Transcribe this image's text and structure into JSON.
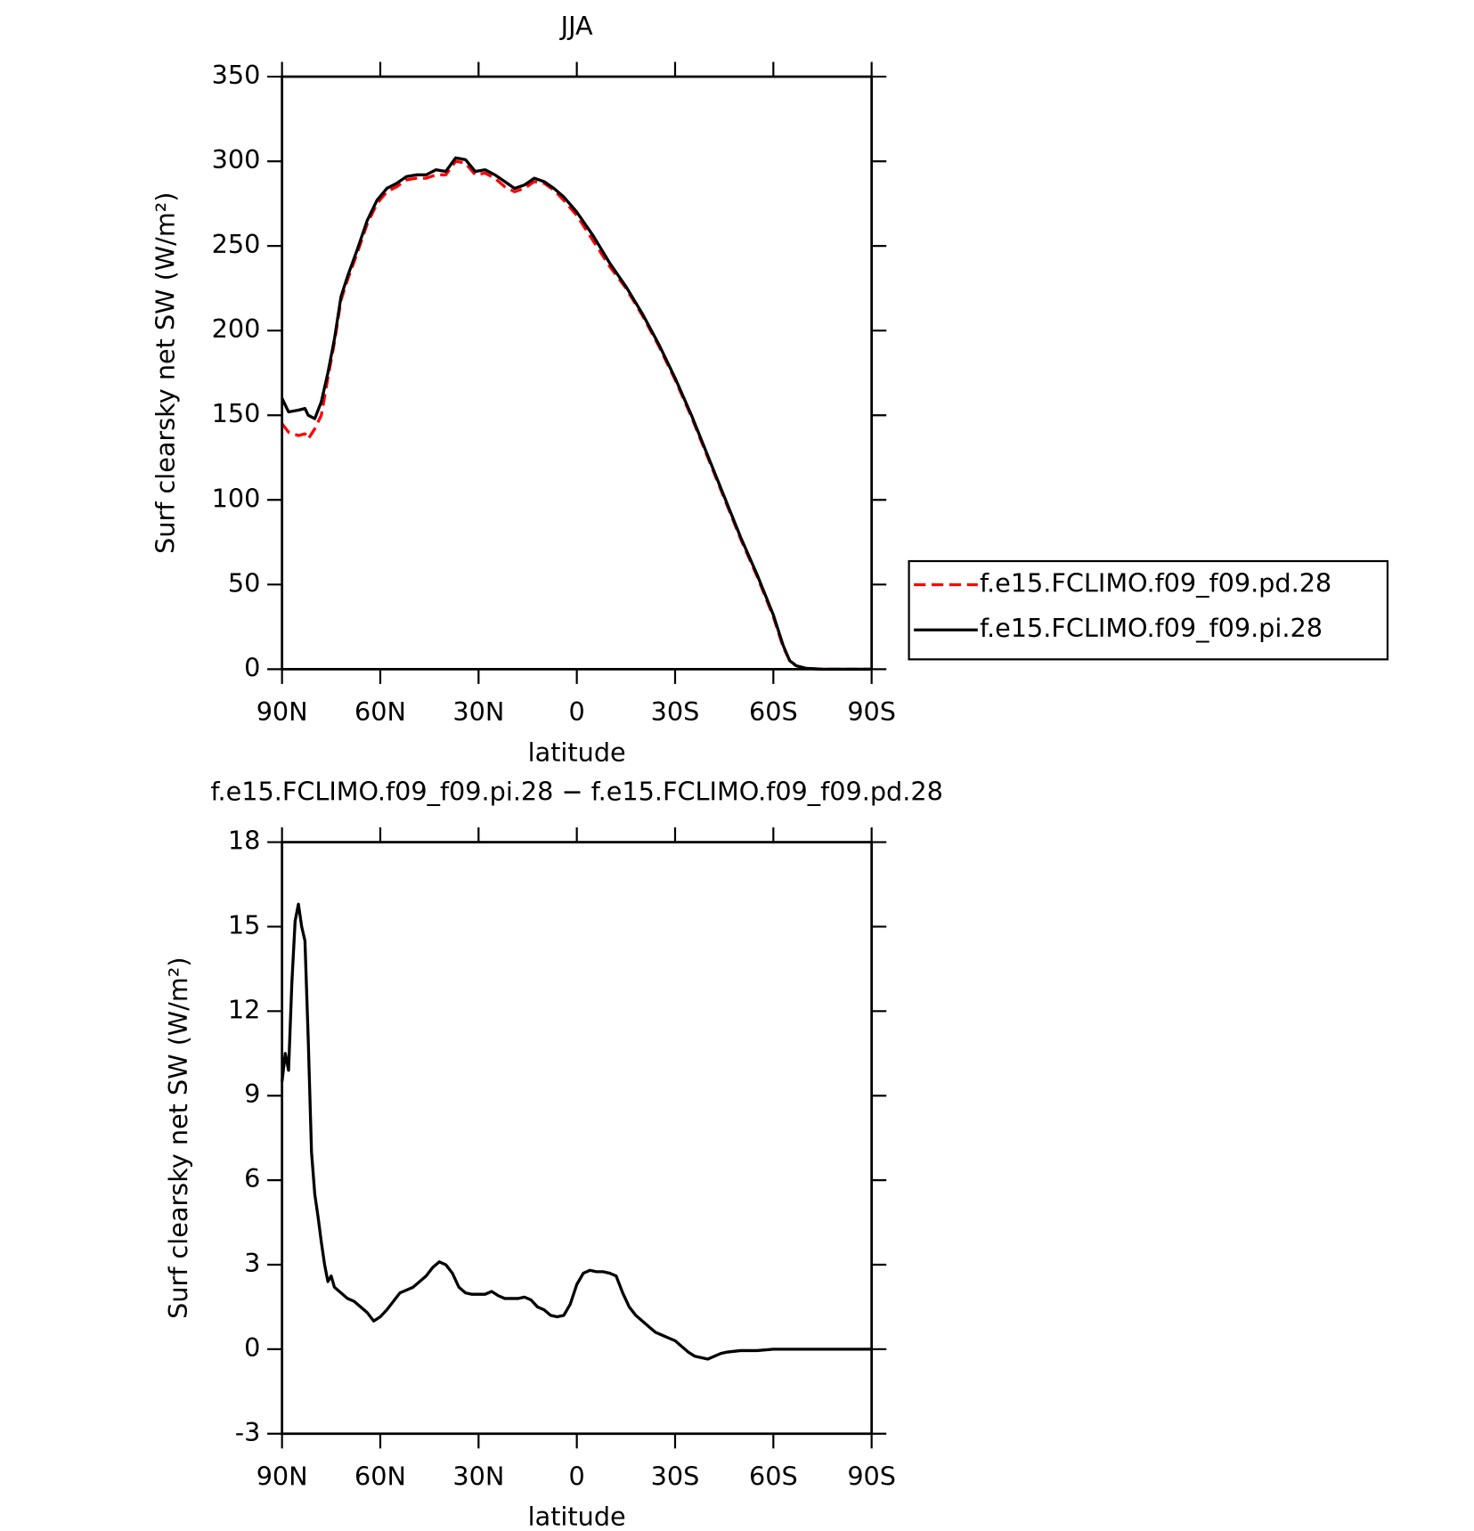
{
  "chart_data": [
    {
      "type": "line",
      "title": "JJA",
      "xlabel": "latitude",
      "ylabel": "Surf clearsky net SW (W/m²)",
      "x": [
        90,
        88,
        85,
        83,
        82,
        80,
        78,
        76,
        74,
        72,
        70,
        67,
        64,
        61,
        58,
        55,
        52,
        49,
        46,
        43,
        40,
        37,
        34,
        31,
        28,
        25,
        22,
        19,
        16,
        13,
        10,
        7,
        4,
        0,
        -5,
        -10,
        -15,
        -20,
        -25,
        -30,
        -35,
        -40,
        -45,
        -50,
        -55,
        -60,
        -63,
        -65,
        -67,
        -70,
        -75,
        -80,
        -90
      ],
      "series": [
        {
          "name": "f.e15.FCLIMO.f09_f09.pd.28",
          "color": "#ff0000",
          "dash": true,
          "values": [
            145,
            140,
            138,
            139,
            136,
            142,
            150,
            172,
            193,
            218,
            230,
            246,
            263,
            275,
            282,
            285,
            289,
            290,
            290,
            292,
            292,
            300,
            299,
            292,
            293,
            290,
            285,
            282,
            284,
            288,
            287,
            283,
            277,
            268,
            253,
            238,
            225,
            209,
            191,
            171,
            149,
            125,
            101,
            77,
            55,
            31,
            13,
            5,
            2,
            0.5,
            0,
            0,
            0
          ]
        },
        {
          "name": "f.e15.FCLIMO.f09_f09.pi.28",
          "color": "#000000",
          "dash": false,
          "values": [
            160,
            152,
            153,
            154,
            150,
            148,
            158,
            175,
            195,
            220,
            232,
            248,
            265,
            277,
            284,
            287,
            291,
            292,
            292,
            295,
            294,
            302,
            301,
            294,
            295,
            292,
            288,
            284,
            286,
            290,
            288,
            284,
            279,
            270,
            256,
            240,
            226,
            210,
            192,
            172,
            150,
            126,
            102,
            78,
            56,
            32,
            14,
            5,
            2,
            0.5,
            0,
            0,
            0
          ]
        }
      ],
      "xlim": [
        90,
        -90
      ],
      "xticks": [
        {
          "value": 90,
          "label": "90N"
        },
        {
          "value": 60,
          "label": "60N"
        },
        {
          "value": 30,
          "label": "30N"
        },
        0,
        {
          "value": -30,
          "label": "30S"
        },
        {
          "value": -60,
          "label": "60S"
        },
        {
          "value": -90,
          "label": "90S"
        }
      ],
      "ylim": [
        0,
        350
      ],
      "yticks": [
        0,
        50,
        100,
        150,
        200,
        250,
        300,
        350
      ],
      "legend": "outside-right"
    },
    {
      "type": "line",
      "title": "f.e15.FCLIMO.f09_f09.pi.28 − f.e15.FCLIMO.f09_f09.pd.28",
      "xlabel": "latitude",
      "ylabel": "Surf clearsky net SW (W/m²)",
      "x": [
        90,
        89,
        88,
        87,
        86,
        85,
        84,
        83,
        82,
        81,
        80,
        79,
        78,
        77,
        76,
        75,
        74,
        72,
        70,
        68,
        66,
        64,
        62,
        60,
        58,
        56,
        54,
        52,
        50,
        48,
        46,
        44,
        42,
        40,
        38,
        36,
        34,
        32,
        30,
        28,
        26,
        24,
        22,
        20,
        18,
        16,
        14,
        12,
        10,
        8,
        6,
        4,
        2,
        0,
        -2,
        -4,
        -6,
        -8,
        -10,
        -12,
        -14,
        -16,
        -18,
        -20,
        -22,
        -24,
        -26,
        -28,
        -30,
        -32,
        -34,
        -36,
        -38,
        -40,
        -42,
        -44,
        -46,
        -50,
        -55,
        -60,
        -65,
        -70,
        -80,
        -90
      ],
      "values": [
        9.5,
        10.5,
        9.9,
        13,
        15.2,
        15.8,
        15,
        14.5,
        11,
        7,
        5.5,
        4.7,
        3.8,
        3,
        2.4,
        2.6,
        2.2,
        2.0,
        1.8,
        1.7,
        1.5,
        1.3,
        1.0,
        1.15,
        1.4,
        1.7,
        2.0,
        2.1,
        2.2,
        2.4,
        2.6,
        2.9,
        3.1,
        3.0,
        2.7,
        2.2,
        2.0,
        1.95,
        1.95,
        1.95,
        2.05,
        1.9,
        1.8,
        1.8,
        1.8,
        1.85,
        1.75,
        1.5,
        1.4,
        1.2,
        1.15,
        1.2,
        1.6,
        2.3,
        2.7,
        2.8,
        2.75,
        2.75,
        2.7,
        2.6,
        2.0,
        1.5,
        1.2,
        1.0,
        0.8,
        0.6,
        0.5,
        0.4,
        0.3,
        0.1,
        -0.1,
        -0.25,
        -0.3,
        -0.35,
        -0.25,
        -0.15,
        -0.1,
        -0.05,
        -0.05,
        0,
        0,
        0,
        0,
        0
      ],
      "color": "#000000",
      "xlim": [
        90,
        -90
      ],
      "xticks": [
        {
          "value": 90,
          "label": "90N"
        },
        {
          "value": 60,
          "label": "60N"
        },
        {
          "value": 30,
          "label": "30N"
        },
        0,
        {
          "value": -30,
          "label": "30S"
        },
        {
          "value": -60,
          "label": "60S"
        },
        {
          "value": -90,
          "label": "90S"
        }
      ],
      "ylim": [
        -3,
        18
      ],
      "yticks": [
        -3,
        0,
        3,
        6,
        9,
        12,
        15,
        18
      ]
    }
  ]
}
